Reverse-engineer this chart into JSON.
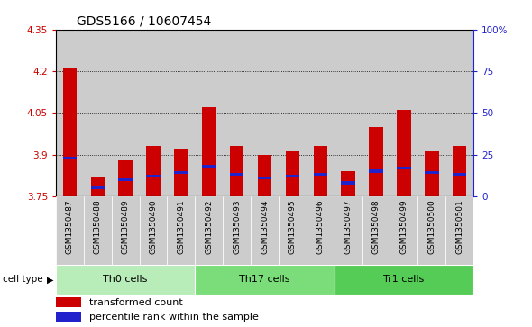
{
  "title": "GDS5166 / 10607454",
  "samples": [
    "GSM1350487",
    "GSM1350488",
    "GSM1350489",
    "GSM1350490",
    "GSM1350491",
    "GSM1350492",
    "GSM1350493",
    "GSM1350494",
    "GSM1350495",
    "GSM1350496",
    "GSM1350497",
    "GSM1350498",
    "GSM1350499",
    "GSM1350500",
    "GSM1350501"
  ],
  "red_values": [
    4.21,
    3.82,
    3.88,
    3.93,
    3.92,
    4.07,
    3.93,
    3.9,
    3.91,
    3.93,
    3.84,
    4.0,
    4.06,
    3.91,
    3.93
  ],
  "blue_pct": [
    23,
    5,
    10,
    12,
    14,
    18,
    13,
    11,
    12,
    13,
    8,
    15,
    17,
    14,
    13
  ],
  "ylim_left": [
    3.75,
    4.35
  ],
  "yticks_left": [
    3.75,
    3.9,
    4.05,
    4.2,
    4.35
  ],
  "yticks_right": [
    0,
    25,
    50,
    75,
    100
  ],
  "cell_groups": [
    {
      "label": "Th0 cells",
      "start": 0,
      "end": 4,
      "color": "#b8ecb8"
    },
    {
      "label": "Th17 cells",
      "start": 5,
      "end": 9,
      "color": "#7add7a"
    },
    {
      "label": "Tr1 cells",
      "start": 10,
      "end": 14,
      "color": "#55cc55"
    }
  ],
  "bar_width": 0.5,
  "red_color": "#cc0000",
  "blue_color": "#2222cc",
  "col_bg": "#cccccc",
  "title_fontsize": 10,
  "tick_fontsize": 7.5,
  "xtick_fontsize": 6.5,
  "legend_fontsize": 8
}
